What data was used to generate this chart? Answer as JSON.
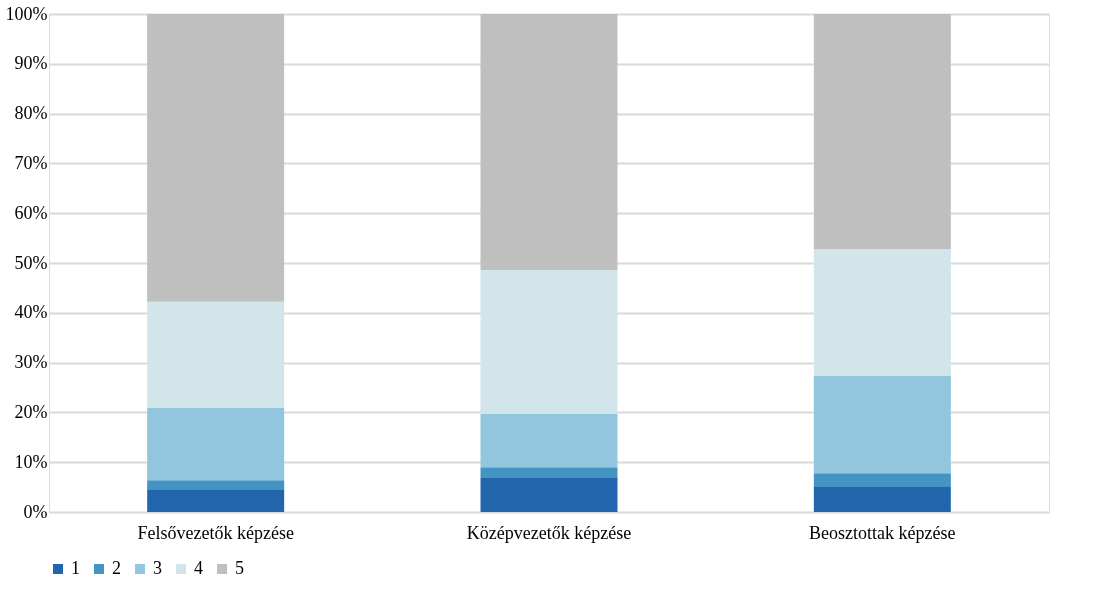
{
  "chart_data": {
    "type": "bar",
    "stacked": true,
    "categories": [
      "Felsővezetők képzése",
      "Középvezetők képzése",
      "Beosztottak képzése"
    ],
    "series": [
      {
        "name": "1",
        "color": "#2166ac",
        "values": [
          4.4,
          7.0,
          5.0
        ]
      },
      {
        "name": "2",
        "color": "#4393c3",
        "values": [
          2.0,
          2.0,
          2.8
        ]
      },
      {
        "name": "3",
        "color": "#92c5de",
        "values": [
          14.5,
          10.7,
          19.5
        ]
      },
      {
        "name": "4",
        "color": "#d1e5ea",
        "values": [
          21.3,
          28.9,
          25.5
        ]
      },
      {
        "name": "5",
        "color": "#bfbfbf",
        "values": [
          57.8,
          51.4,
          47.2
        ]
      }
    ],
    "ylim": [
      0,
      100
    ],
    "yticks": [
      {
        "value": 0,
        "label": "0%"
      },
      {
        "value": 10,
        "label": "10%"
      },
      {
        "value": 20,
        "label": "20%"
      },
      {
        "value": 30,
        "label": "30%"
      },
      {
        "value": 40,
        "label": "40%"
      },
      {
        "value": 50,
        "label": "50%"
      },
      {
        "value": 60,
        "label": "60%"
      },
      {
        "value": 70,
        "label": "70%"
      },
      {
        "value": 80,
        "label": "80%"
      },
      {
        "value": 90,
        "label": "90%"
      },
      {
        "value": 100,
        "label": "100%"
      }
    ],
    "grid": "y",
    "legend": "bottom"
  }
}
